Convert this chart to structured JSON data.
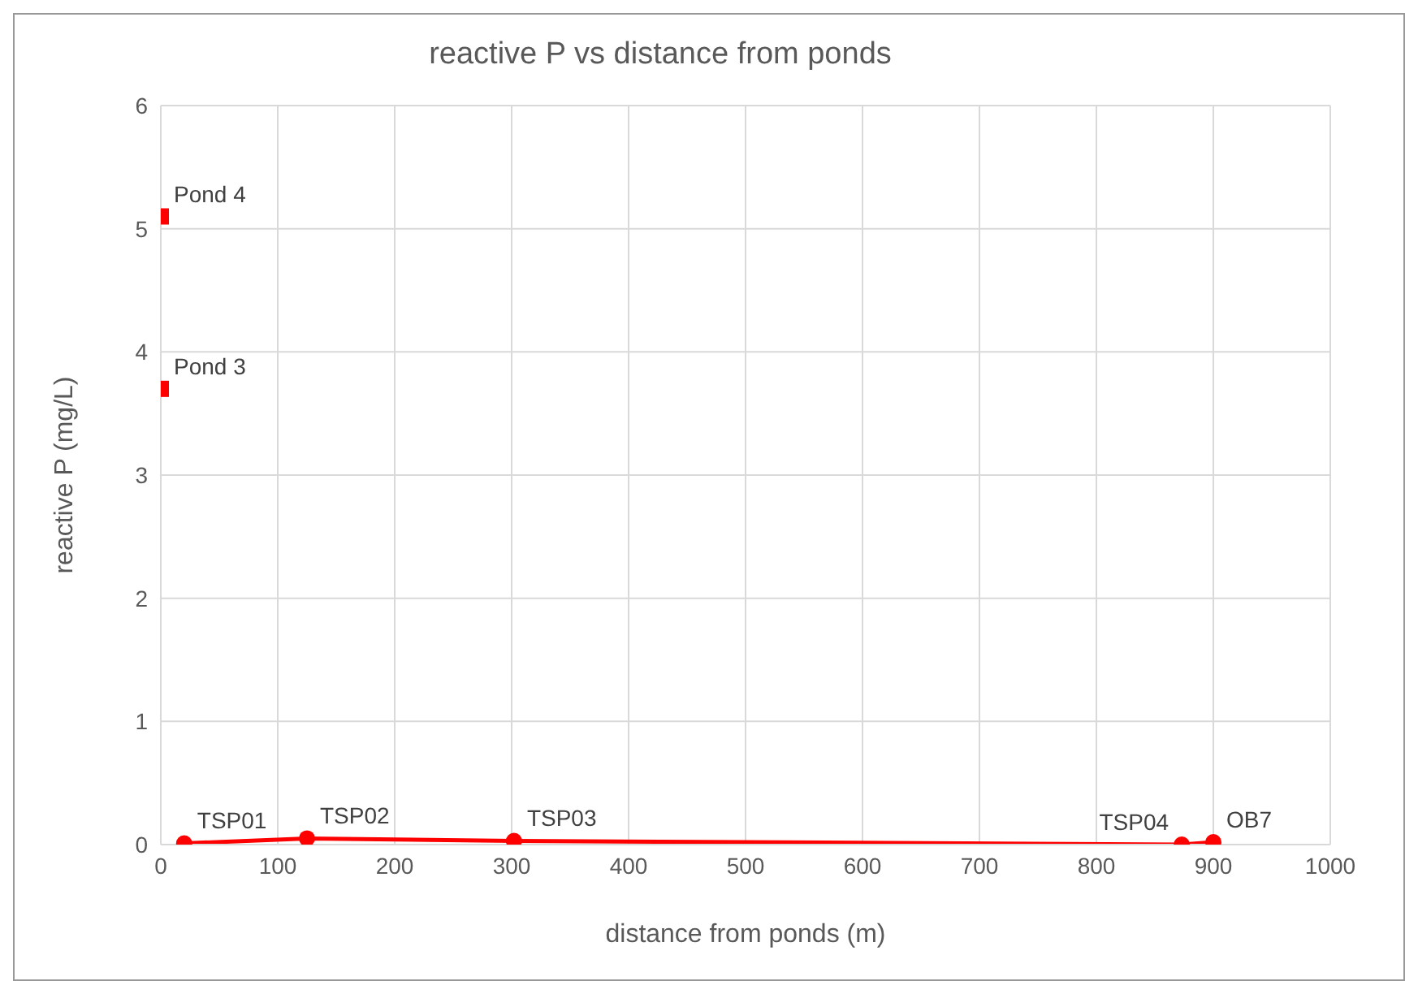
{
  "chart_data": {
    "type": "line",
    "title": "reactive P vs distance from ponds",
    "xlabel": "distance from ponds (m)",
    "ylabel": "reactive P (mg/L)",
    "xlim": [
      0,
      1000
    ],
    "xticks": [
      0,
      100,
      200,
      300,
      400,
      500,
      600,
      700,
      800,
      900,
      1000
    ],
    "ylim": [
      0,
      6
    ],
    "yticks": [
      0,
      1,
      2,
      3,
      4,
      5,
      6
    ],
    "grid": true,
    "legend": false,
    "series": [
      {
        "type": "scatter",
        "marker": "square",
        "color": "#ff0000",
        "x": [
          0,
          0
        ],
        "values": [
          5.1,
          3.7
        ]
      },
      {
        "marker": "circle",
        "color": "#ff0000",
        "x": [
          20,
          125,
          302,
          873,
          900
        ],
        "values": [
          0.01,
          0.05,
          0.03,
          0.0,
          0.02
        ]
      }
    ],
    "annotations": [
      {
        "text": "Pond 4",
        "x": 0,
        "y": 5.1
      },
      {
        "text": "Pond 3",
        "x": 0,
        "y": 3.7
      },
      {
        "text": "TSP01",
        "x": 20,
        "y": 0.01
      },
      {
        "text": "TSP02",
        "x": 125,
        "y": 0.05
      },
      {
        "text": "TSP03",
        "x": 302,
        "y": 0.03
      },
      {
        "text": "TSP04",
        "x": 873,
        "y": 0.0
      },
      {
        "text": "OB7",
        "x": 900,
        "y": 0.02
      }
    ]
  }
}
